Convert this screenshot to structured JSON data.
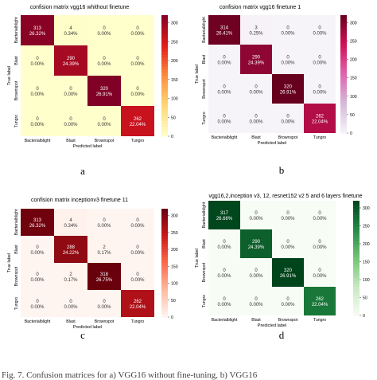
{
  "figure_caption": "Fig. 7. Confusion matrices for a) VGG16 without fine-tuning, b) VGG16",
  "chart_data": [
    {
      "type": "heatmap",
      "panel_letter": "a",
      "title": "confision matrix vgg16 whithout finetune",
      "xlabel": "Predicted label",
      "ylabel": "True label",
      "x_ticks": [
        "Bacterialblight",
        "Blast",
        "Brownspot",
        "Tungro"
      ],
      "y_ticks": [
        "Bacterialblight",
        "Blast",
        "Brownspot",
        "Tungro"
      ],
      "cells": [
        [
          {
            "count": "313",
            "pct": "26.32%"
          },
          {
            "count": "4",
            "pct": "0.34%"
          },
          {
            "count": "0",
            "pct": "0.00%"
          },
          {
            "count": "0",
            "pct": "0.00%"
          }
        ],
        [
          {
            "count": "0",
            "pct": "0.00%"
          },
          {
            "count": "290",
            "pct": "24.39%"
          },
          {
            "count": "0",
            "pct": "0.00%"
          },
          {
            "count": "0",
            "pct": "0.00%"
          }
        ],
        [
          {
            "count": "0",
            "pct": "0.00%"
          },
          {
            "count": "0",
            "pct": "0.00%"
          },
          {
            "count": "320",
            "pct": "26.91%"
          },
          {
            "count": "0",
            "pct": "0.00%"
          }
        ],
        [
          {
            "count": "0",
            "pct": "0.00%"
          },
          {
            "count": "0",
            "pct": "0.00%"
          },
          {
            "count": "0",
            "pct": "0.00%"
          },
          {
            "count": "262",
            "pct": "22.04%"
          }
        ]
      ],
      "values": [
        [
          313,
          4,
          0,
          0
        ],
        [
          0,
          290,
          0,
          0
        ],
        [
          0,
          0,
          320,
          0
        ],
        [
          0,
          0,
          0,
          262
        ]
      ],
      "colorbar_ticks": [
        "0",
        "50",
        "100",
        "150",
        "200",
        "250",
        "300"
      ],
      "colorbar_range": [
        0,
        320
      ],
      "colormap": "YlOrRd",
      "colors": [
        "#ffffcc",
        "#fed976",
        "#fd8d3c",
        "#e31a1c",
        "#800026"
      ]
    },
    {
      "type": "heatmap",
      "panel_letter": "b",
      "title": "confision matrix vgg16 finetune 1",
      "xlabel": "Predicted label",
      "ylabel": "True label",
      "x_ticks": [
        "Bacterialblight",
        "Blast",
        "Brownspot",
        "Tungro"
      ],
      "y_ticks": [
        "Bacterialblight",
        "Blast",
        "Brownspot",
        "Tungro"
      ],
      "cells": [
        [
          {
            "count": "314",
            "pct": "26.41%"
          },
          {
            "count": "3",
            "pct": "0.25%"
          },
          {
            "count": "0",
            "pct": "0.00%"
          },
          {
            "count": "0",
            "pct": "0.00%"
          }
        ],
        [
          {
            "count": "0",
            "pct": "0.00%"
          },
          {
            "count": "290",
            "pct": "24.39%"
          },
          {
            "count": "0",
            "pct": "0.00%"
          },
          {
            "count": "0",
            "pct": "0.00%"
          }
        ],
        [
          {
            "count": "0",
            "pct": "0.00%"
          },
          {
            "count": "0",
            "pct": "0.00%"
          },
          {
            "count": "320",
            "pct": "26.91%"
          },
          {
            "count": "0",
            "pct": "0.00%"
          }
        ],
        [
          {
            "count": "0",
            "pct": "0.00%"
          },
          {
            "count": "0",
            "pct": "0.00%"
          },
          {
            "count": "0",
            "pct": "0.00%"
          },
          {
            "count": "262",
            "pct": "22.04%"
          }
        ]
      ],
      "values": [
        [
          314,
          3,
          0,
          0
        ],
        [
          0,
          290,
          0,
          0
        ],
        [
          0,
          0,
          320,
          0
        ],
        [
          0,
          0,
          0,
          262
        ]
      ],
      "colorbar_ticks": [
        "0",
        "50",
        "100",
        "150",
        "200",
        "250",
        "300"
      ],
      "colorbar_range": [
        0,
        320
      ],
      "colormap": "PuRd",
      "colors": [
        "#f7f4f9",
        "#d4b9da",
        "#df65b0",
        "#ce1256",
        "#67001f"
      ]
    },
    {
      "type": "heatmap",
      "panel_letter": "c",
      "title": "confision matrix inceptionv3 finetune 11",
      "xlabel": "Predicted label",
      "ylabel": "True label",
      "x_ticks": [
        "Bacterialblight",
        "Blast",
        "Brownspot",
        "Tungro"
      ],
      "y_ticks": [
        "Bacterialblight",
        "Blast",
        "Brownspot",
        "Tungro"
      ],
      "cells": [
        [
          {
            "count": "313",
            "pct": "26.32%"
          },
          {
            "count": "4",
            "pct": "0.34%"
          },
          {
            "count": "0",
            "pct": "0.00%"
          },
          {
            "count": "0",
            "pct": "0.00%"
          }
        ],
        [
          {
            "count": "0",
            "pct": "0.00%"
          },
          {
            "count": "288",
            "pct": "24.22%"
          },
          {
            "count": "2",
            "pct": "0.17%"
          },
          {
            "count": "0",
            "pct": "0.00%"
          }
        ],
        [
          {
            "count": "0",
            "pct": "0.00%"
          },
          {
            "count": "2",
            "pct": "0.17%"
          },
          {
            "count": "318",
            "pct": "26.75%"
          },
          {
            "count": "0",
            "pct": "0.00%"
          }
        ],
        [
          {
            "count": "0",
            "pct": "0.00%"
          },
          {
            "count": "0",
            "pct": "0.00%"
          },
          {
            "count": "0",
            "pct": "0.00%"
          },
          {
            "count": "262",
            "pct": "22.04%"
          }
        ]
      ],
      "values": [
        [
          313,
          4,
          0,
          0
        ],
        [
          0,
          288,
          2,
          0
        ],
        [
          0,
          2,
          318,
          0
        ],
        [
          0,
          0,
          0,
          262
        ]
      ],
      "colorbar_ticks": [
        "0",
        "50",
        "100",
        "150",
        "200",
        "250",
        "300"
      ],
      "colorbar_range": [
        0,
        320
      ],
      "colormap": "Reds",
      "colors": [
        "#fff5f0",
        "#fcbba1",
        "#fb6a4a",
        "#cb181d",
        "#67000d"
      ]
    },
    {
      "type": "heatmap",
      "panel_letter": "d",
      "title": "vgg16,2,inception v3, 12, resnet152 v2 5 and 6 layers finetune",
      "xlabel": "Predicted label",
      "ylabel": "True label",
      "x_ticks": [
        "Bacterialblight",
        "Blast",
        "Brownspot",
        "Tungro"
      ],
      "y_ticks": [
        "Bacterialblight",
        "Blast",
        "Brownspot",
        "Tungro"
      ],
      "cells": [
        [
          {
            "count": "317",
            "pct": "26.66%"
          },
          {
            "count": "0",
            "pct": "0.00%"
          },
          {
            "count": "0",
            "pct": "0.00%"
          },
          {
            "count": "0",
            "pct": "0.00%"
          }
        ],
        [
          {
            "count": "0",
            "pct": "0.00%"
          },
          {
            "count": "290",
            "pct": "24.39%"
          },
          {
            "count": "0",
            "pct": "0.00%"
          },
          {
            "count": "0",
            "pct": "0.00%"
          }
        ],
        [
          {
            "count": "0",
            "pct": "0.00%"
          },
          {
            "count": "0",
            "pct": "0.00%"
          },
          {
            "count": "320",
            "pct": "26.91%"
          },
          {
            "count": "0",
            "pct": "0.00%"
          }
        ],
        [
          {
            "count": "0",
            "pct": "0.00%"
          },
          {
            "count": "0",
            "pct": "0.00%"
          },
          {
            "count": "0",
            "pct": "0.00%"
          },
          {
            "count": "262",
            "pct": "22.04%"
          }
        ]
      ],
      "values": [
        [
          317,
          0,
          0,
          0
        ],
        [
          0,
          290,
          0,
          0
        ],
        [
          0,
          0,
          320,
          0
        ],
        [
          0,
          0,
          0,
          262
        ]
      ],
      "colorbar_ticks": [
        "0",
        "50",
        "100",
        "150",
        "200",
        "250",
        "300"
      ],
      "colorbar_range": [
        0,
        320
      ],
      "colormap": "Greens",
      "colors": [
        "#f7fcf5",
        "#c7e9c0",
        "#74c476",
        "#238b45",
        "#00441b"
      ]
    }
  ]
}
